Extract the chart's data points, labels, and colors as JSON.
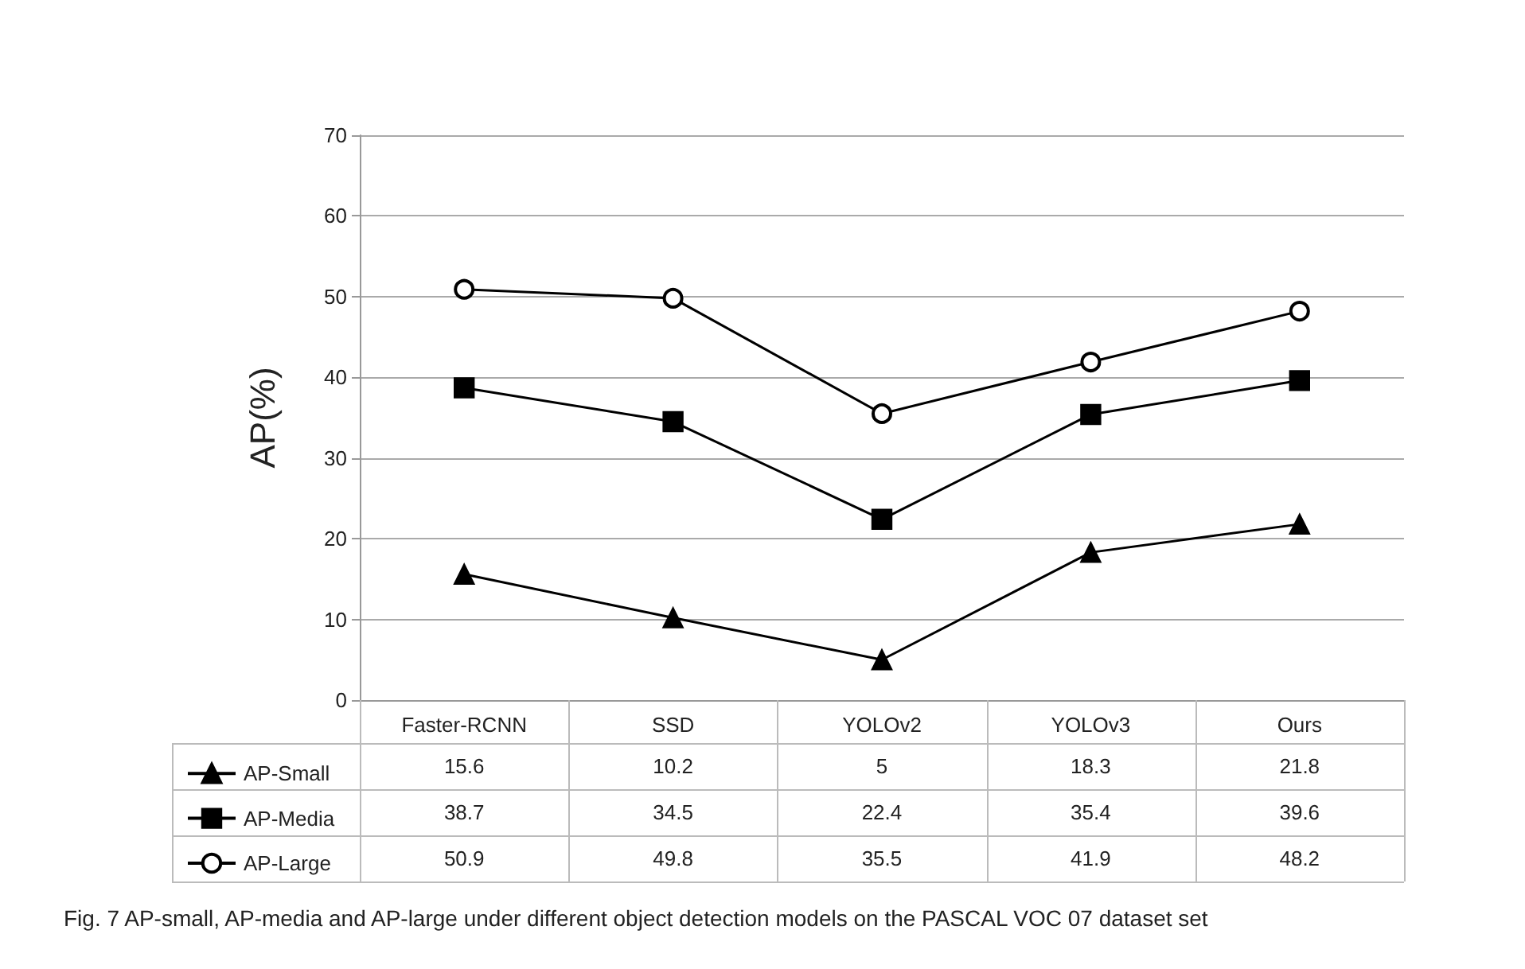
{
  "chart_data": {
    "type": "line",
    "ylabel": "AP(%)",
    "categories": [
      "Faster-RCNN",
      "SSD",
      "YOLOv2",
      "YOLOv3",
      "Ours"
    ],
    "series": [
      {
        "name": "AP-Small",
        "color": "#000000",
        "marker": "triangle",
        "values": [
          15.6,
          10.2,
          5,
          18.3,
          21.8
        ]
      },
      {
        "name": "AP-Media",
        "color": "#000000",
        "marker": "square",
        "values": [
          38.7,
          34.5,
          22.4,
          35.4,
          39.6
        ]
      },
      {
        "name": "AP-Large",
        "color": "#000000",
        "marker": "circle",
        "values": [
          50.9,
          49.8,
          35.5,
          41.9,
          48.2
        ]
      }
    ],
    "ylim": [
      0,
      70
    ],
    "yticks": [
      0,
      10,
      20,
      30,
      40,
      50,
      60,
      70
    ],
    "grid": "y",
    "legend": "bottom left",
    "data_labels": true,
    "annotations": [
      "Fig. 7  AP-small, AP-media and AP-large under different object detection models on the PASCAL VOC 07 dataset set"
    ]
  }
}
